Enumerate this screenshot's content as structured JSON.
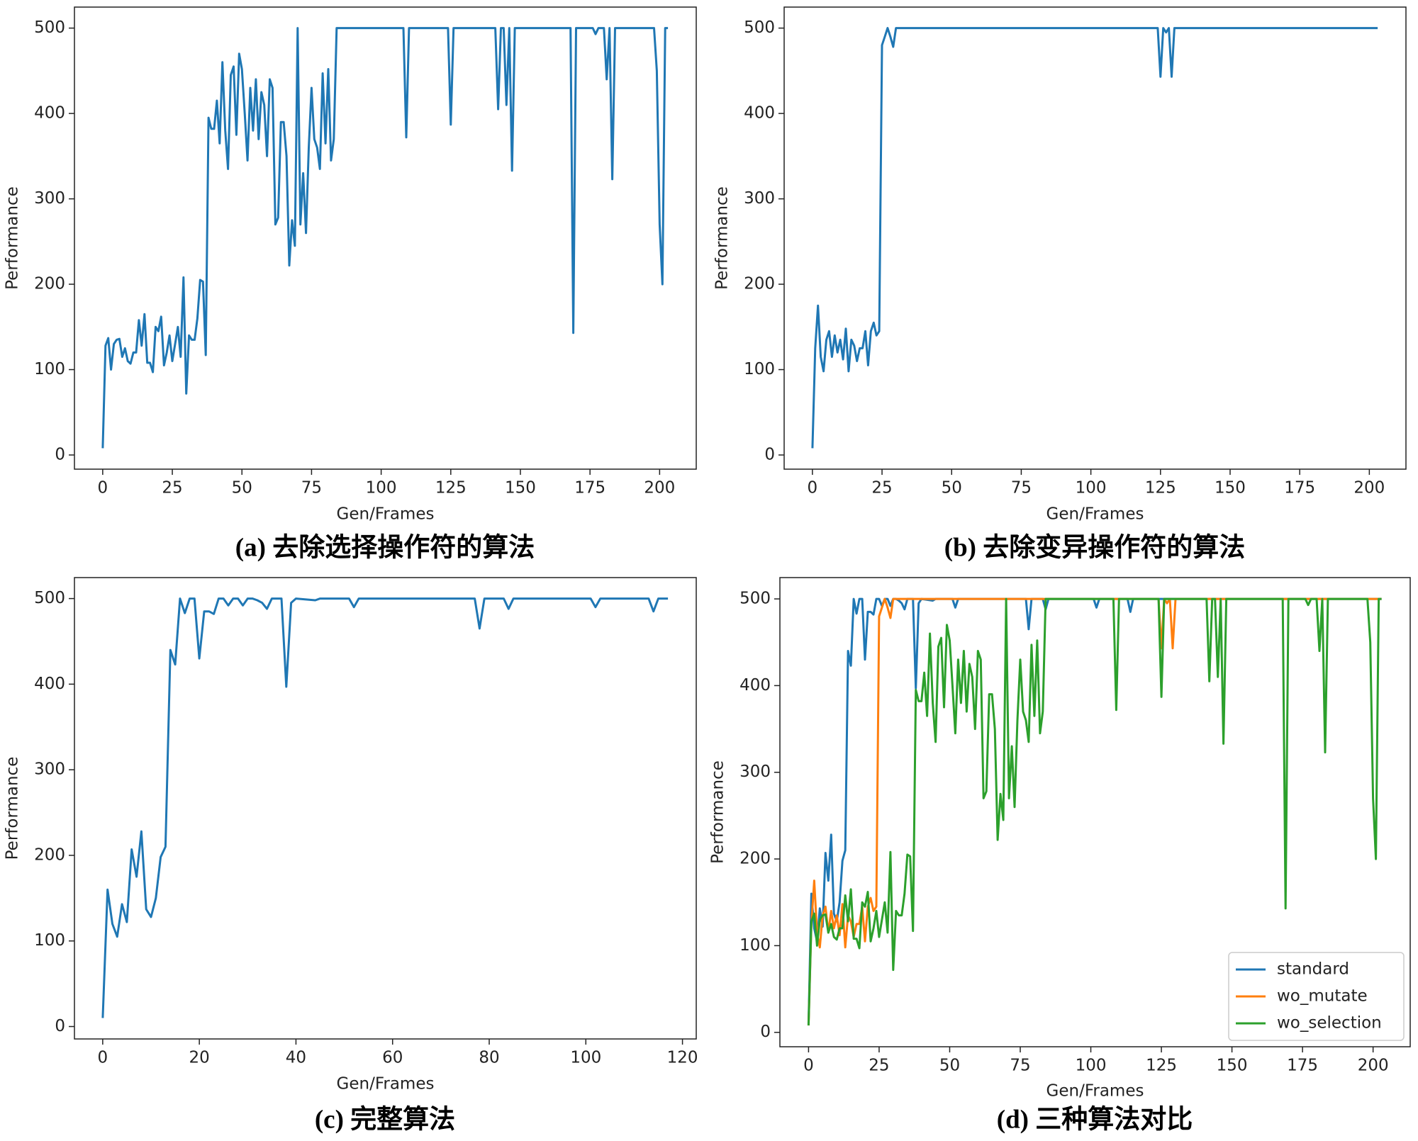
{
  "chart_data": [
    {
      "type": "line",
      "caption": "(a) 去除选择操作符的算法",
      "xlabel": "Gen/Frames",
      "ylabel": "Performance",
      "xlim": [
        -10.15,
        213.15
      ],
      "ylim": [
        -16.6,
        524.6
      ],
      "xticks": [
        0,
        25,
        50,
        75,
        100,
        125,
        150,
        175,
        200
      ],
      "yticks": [
        0,
        100,
        200,
        300,
        400,
        500
      ],
      "series": [
        {
          "color": "#1f77b4",
          "x": [
            0,
            1,
            2,
            3,
            4,
            5,
            6,
            7,
            8,
            9,
            10,
            11,
            12,
            13,
            14,
            15,
            16,
            17,
            18,
            19,
            20,
            21,
            22,
            23,
            24,
            25,
            26,
            27,
            28,
            29,
            30,
            31,
            32,
            33,
            34,
            35,
            36,
            37,
            38,
            39,
            40,
            41,
            42,
            43,
            44,
            45,
            46,
            47,
            48,
            49,
            50,
            51,
            52,
            53,
            54,
            55,
            56,
            57,
            58,
            59,
            60,
            61,
            62,
            63,
            64,
            65,
            66,
            67,
            68,
            69,
            70,
            71,
            72,
            73,
            74,
            75,
            76,
            77,
            78,
            79,
            80,
            81,
            82,
            83,
            84,
            108,
            109,
            110,
            124,
            125,
            126,
            141,
            142,
            143,
            144,
            145,
            146,
            147,
            148,
            168,
            169,
            170,
            176,
            177,
            178,
            180,
            181,
            182,
            183,
            184,
            198,
            199,
            200,
            201,
            202,
            203
          ],
          "values": [
            8,
            128,
            137,
            100,
            130,
            135,
            136,
            115,
            125,
            110,
            107,
            120,
            120,
            158,
            128,
            165,
            108,
            108,
            97,
            150,
            145,
            162,
            105,
            120,
            140,
            110,
            130,
            150,
            115,
            208,
            72,
            140,
            135,
            135,
            160,
            205,
            203,
            117,
            395,
            382,
            382,
            415,
            365,
            460,
            380,
            335,
            445,
            455,
            375,
            470,
            452,
            400,
            345,
            430,
            380,
            440,
            370,
            425,
            410,
            350,
            440,
            430,
            270,
            278,
            390,
            390,
            350,
            222,
            275,
            245,
            500,
            270,
            330,
            260,
            360,
            430,
            370,
            360,
            335,
            447,
            365,
            452,
            345,
            370,
            500,
            500,
            372,
            500,
            500,
            387,
            500,
            500,
            405,
            500,
            500,
            410,
            500,
            333,
            500,
            500,
            143,
            500,
            500,
            493,
            500,
            500,
            440,
            500,
            323,
            500,
            500,
            450,
            270,
            200,
            500,
            500
          ]
        }
      ]
    },
    {
      "type": "line",
      "caption": "(b) 去除变异操作符的算法",
      "xlabel": "Gen/Frames",
      "ylabel": "Performance",
      "xlim": [
        -10.15,
        213.15
      ],
      "ylim": [
        -16.6,
        524.6
      ],
      "xticks": [
        0,
        25,
        50,
        75,
        100,
        125,
        150,
        175,
        200
      ],
      "yticks": [
        0,
        100,
        200,
        300,
        400,
        500
      ],
      "series": [
        {
          "color": "#1f77b4",
          "x": [
            0,
            1,
            2,
            3,
            4,
            5,
            6,
            7,
            8,
            9,
            10,
            11,
            12,
            13,
            14,
            15,
            16,
            17,
            18,
            19,
            20,
            21,
            22,
            23,
            24,
            25,
            26,
            27,
            28,
            29,
            30,
            124,
            125,
            126,
            127,
            128,
            129,
            130,
            203
          ],
          "values": [
            8,
            125,
            175,
            115,
            98,
            135,
            145,
            115,
            140,
            120,
            135,
            112,
            148,
            98,
            135,
            128,
            110,
            125,
            125,
            145,
            105,
            145,
            155,
            140,
            145,
            480,
            490,
            500,
            490,
            478,
            500,
            500,
            443,
            500,
            495,
            500,
            443,
            500,
            500
          ]
        }
      ]
    },
    {
      "type": "line",
      "caption": "(c) 完整算法",
      "xlabel": "Gen/Frames",
      "ylabel": "Performance",
      "xlim": [
        -5.85,
        122.85
      ],
      "ylim": [
        -14.5,
        524.5
      ],
      "xticks": [
        0,
        20,
        40,
        60,
        80,
        100,
        120
      ],
      "yticks": [
        0,
        100,
        200,
        300,
        400,
        500
      ],
      "series": [
        {
          "color": "#1f77b4",
          "x": [
            0,
            1,
            2,
            3,
            4,
            5,
            6,
            7,
            8,
            9,
            10,
            11,
            12,
            13,
            14,
            15,
            16,
            17,
            18,
            19,
            20,
            21,
            22,
            23,
            24,
            25,
            26,
            27,
            28,
            29,
            30,
            31,
            32,
            33,
            34,
            35,
            36,
            37,
            38,
            39,
            40,
            44,
            45,
            51,
            52,
            53,
            77,
            78,
            79,
            83,
            84,
            85,
            101,
            102,
            103,
            113,
            114,
            115,
            117
          ],
          "values": [
            10,
            160,
            120,
            105,
            143,
            122,
            207,
            175,
            228,
            137,
            128,
            150,
            198,
            210,
            440,
            423,
            500,
            483,
            500,
            500,
            430,
            485,
            485,
            482,
            500,
            500,
            492,
            500,
            500,
            492,
            500,
            500,
            498,
            495,
            488,
            500,
            500,
            500,
            397,
            495,
            500,
            498,
            500,
            500,
            490,
            500,
            500,
            465,
            500,
            500,
            488,
            500,
            500,
            490,
            500,
            500,
            485,
            500,
            500
          ]
        }
      ]
    },
    {
      "type": "line",
      "caption": "(d) 三种算法对比",
      "xlabel": "Gen/Frames",
      "ylabel": "Performance",
      "legend": "lower right",
      "xlim": [
        -10.15,
        213.15
      ],
      "ylim": [
        -16.6,
        524.6
      ],
      "xticks": [
        0,
        25,
        50,
        75,
        100,
        125,
        150,
        175,
        200
      ],
      "yticks": [
        0,
        100,
        200,
        300,
        400,
        500
      ],
      "series": [
        {
          "name": "standard",
          "color": "#1f77b4",
          "x": [
            0,
            1,
            2,
            3,
            4,
            5,
            6,
            7,
            8,
            9,
            10,
            11,
            12,
            13,
            14,
            15,
            16,
            17,
            18,
            19,
            20,
            21,
            22,
            23,
            24,
            25,
            26,
            27,
            28,
            29,
            30,
            31,
            32,
            33,
            34,
            35,
            36,
            37,
            38,
            39,
            40,
            44,
            45,
            51,
            52,
            53,
            77,
            78,
            79,
            83,
            84,
            85,
            101,
            102,
            103,
            113,
            114,
            115,
            203
          ],
          "values": [
            10,
            160,
            120,
            105,
            143,
            122,
            207,
            175,
            228,
            137,
            128,
            150,
            198,
            210,
            440,
            423,
            500,
            483,
            500,
            500,
            430,
            485,
            485,
            482,
            500,
            500,
            492,
            500,
            500,
            492,
            500,
            500,
            498,
            495,
            488,
            500,
            500,
            500,
            397,
            495,
            500,
            498,
            500,
            500,
            490,
            500,
            500,
            465,
            500,
            500,
            488,
            500,
            500,
            490,
            500,
            500,
            485,
            500,
            500
          ]
        },
        {
          "name": "wo_mutate",
          "color": "#ff7f0e",
          "x": [
            0,
            1,
            2,
            3,
            4,
            5,
            6,
            7,
            8,
            9,
            10,
            11,
            12,
            13,
            14,
            15,
            16,
            17,
            18,
            19,
            20,
            21,
            22,
            23,
            24,
            25,
            26,
            27,
            28,
            29,
            30,
            124,
            125,
            126,
            127,
            128,
            129,
            130,
            203
          ],
          "values": [
            8,
            125,
            175,
            115,
            98,
            135,
            145,
            115,
            140,
            120,
            135,
            112,
            148,
            98,
            135,
            128,
            110,
            125,
            125,
            145,
            105,
            145,
            155,
            140,
            145,
            480,
            490,
            500,
            490,
            478,
            500,
            500,
            443,
            500,
            495,
            500,
            443,
            500,
            500
          ]
        },
        {
          "name": "wo_selection",
          "color": "#2ca02c",
          "x": [
            0,
            1,
            2,
            3,
            4,
            5,
            6,
            7,
            8,
            9,
            10,
            11,
            12,
            13,
            14,
            15,
            16,
            17,
            18,
            19,
            20,
            21,
            22,
            23,
            24,
            25,
            26,
            27,
            28,
            29,
            30,
            31,
            32,
            33,
            34,
            35,
            36,
            37,
            38,
            39,
            40,
            41,
            42,
            43,
            44,
            45,
            46,
            47,
            48,
            49,
            50,
            51,
            52,
            53,
            54,
            55,
            56,
            57,
            58,
            59,
            60,
            61,
            62,
            63,
            64,
            65,
            66,
            67,
            68,
            69,
            70,
            71,
            72,
            73,
            74,
            75,
            76,
            77,
            78,
            79,
            80,
            81,
            82,
            83,
            84,
            108,
            109,
            110,
            124,
            125,
            126,
            141,
            142,
            143,
            144,
            145,
            146,
            147,
            148,
            168,
            169,
            170,
            176,
            177,
            178,
            180,
            181,
            182,
            183,
            184,
            198,
            199,
            200,
            201,
            202,
            203
          ],
          "values": [
            8,
            128,
            137,
            100,
            130,
            135,
            136,
            115,
            125,
            110,
            107,
            120,
            120,
            158,
            128,
            165,
            108,
            108,
            97,
            150,
            145,
            162,
            105,
            120,
            140,
            110,
            130,
            150,
            115,
            208,
            72,
            140,
            135,
            135,
            160,
            205,
            203,
            117,
            395,
            382,
            382,
            415,
            365,
            460,
            380,
            335,
            445,
            455,
            375,
            470,
            452,
            400,
            345,
            430,
            380,
            440,
            370,
            425,
            410,
            350,
            440,
            430,
            270,
            278,
            390,
            390,
            350,
            222,
            275,
            245,
            500,
            270,
            330,
            260,
            360,
            430,
            370,
            360,
            335,
            447,
            365,
            452,
            345,
            370,
            500,
            500,
            372,
            500,
            500,
            387,
            500,
            500,
            405,
            500,
            500,
            410,
            500,
            333,
            500,
            500,
            143,
            500,
            500,
            493,
            500,
            500,
            440,
            500,
            323,
            500,
            500,
            450,
            270,
            200,
            500,
            500
          ]
        }
      ]
    }
  ]
}
